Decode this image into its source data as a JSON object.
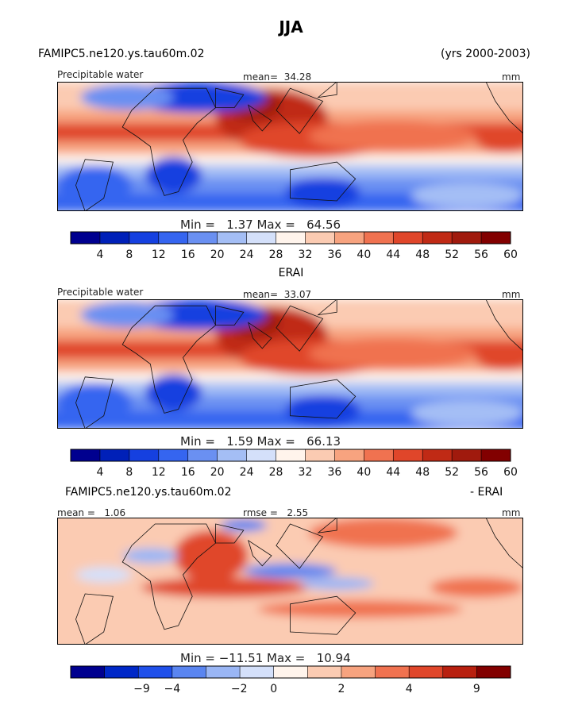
{
  "page": {
    "title": "JJA",
    "case_name": "FAMIPC5.ne120.ys.tau60m.02",
    "years": "(yrs 2000-2003)"
  },
  "colors": {
    "abs_palette": [
      "#00008f",
      "#0020b8",
      "#1540e0",
      "#3565f0",
      "#6a90f2",
      "#a4bef5",
      "#d4e0fa",
      "#fff4ec",
      "#fbcbb2",
      "#f7a37f",
      "#f07250",
      "#e0462a",
      "#c02a15",
      "#a01a0d",
      "#820000"
    ],
    "diff_palette": [
      "#00008f",
      "#0028c8",
      "#2050ea",
      "#5a85f0",
      "#9ab6f5",
      "#d4e0fa",
      "#fff4ec",
      "#fbcbb2",
      "#f7a37f",
      "#f07250",
      "#e0462a",
      "#b8200f",
      "#820000"
    ],
    "land_outline": "#111111"
  },
  "chart_data": [
    {
      "type": "heatmap",
      "title": "FAMIPC5.ne120.ys.tau60m.02",
      "variable": "Precipitable water",
      "units": "mm",
      "mean_label": "mean=",
      "mean": "34.28",
      "min_label": "Min =",
      "min": "1.37",
      "max_label": "Max =",
      "max": "64.56",
      "colorbar_levels": [
        "4",
        "8",
        "12",
        "16",
        "20",
        "24",
        "28",
        "32",
        "36",
        "40",
        "44",
        "48",
        "52",
        "56",
        "60"
      ],
      "colorbar_range": [
        0,
        64
      ]
    },
    {
      "type": "heatmap",
      "title": "ERAI",
      "variable": "Precipitable water",
      "units": "mm",
      "mean_label": "mean=",
      "mean": "33.07",
      "min_label": "Min =",
      "min": "1.59",
      "max_label": "Max =",
      "max": "66.13",
      "colorbar_levels": [
        "4",
        "8",
        "12",
        "16",
        "20",
        "24",
        "28",
        "32",
        "36",
        "40",
        "44",
        "48",
        "52",
        "56",
        "60"
      ],
      "colorbar_range": [
        0,
        64
      ]
    },
    {
      "type": "heatmap",
      "title": "FAMIPC5.ne120.ys.tau60m.02",
      "title_right": "- ERAI",
      "units": "mm",
      "mean_label": "mean =",
      "mean": "1.06",
      "rmse_label": "rmse =",
      "rmse": "2.55",
      "min_label": "Min =",
      "min": "−11.51",
      "max_label": "Max =",
      "max": "10.94",
      "colorbar_levels": [
        "−9",
        "−4",
        "−2",
        "0",
        "2",
        "4",
        "9"
      ]
    }
  ]
}
